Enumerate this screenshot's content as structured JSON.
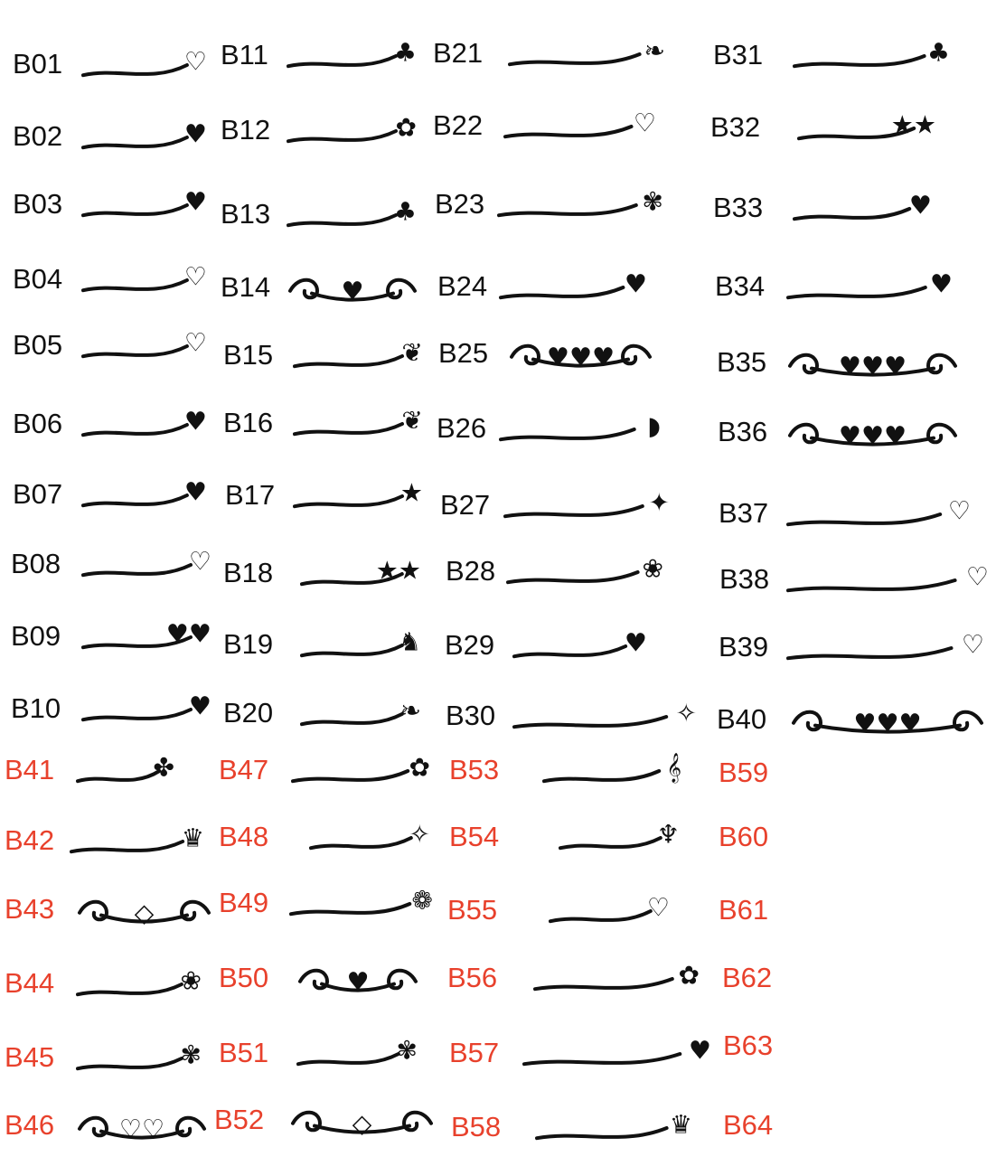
{
  "colors": {
    "standard": "#111111",
    "new": "#e8412c"
  },
  "items": [
    {
      "code": "B01",
      "group": "standard",
      "ornament": "double-heart-outline-icon"
    },
    {
      "code": "B02",
      "group": "standard",
      "ornament": "heart-icon"
    },
    {
      "code": "B03",
      "group": "standard",
      "ornament": "heart-icon"
    },
    {
      "code": "B04",
      "group": "standard",
      "ornament": "heart-outline-icon"
    },
    {
      "code": "B05",
      "group": "standard",
      "ornament": "heart-outline-icon"
    },
    {
      "code": "B06",
      "group": "standard",
      "ornament": "heart-icon"
    },
    {
      "code": "B07",
      "group": "standard",
      "ornament": "heart-icon"
    },
    {
      "code": "B08",
      "group": "standard",
      "ornament": "heart-outline-icon"
    },
    {
      "code": "B09",
      "group": "standard",
      "ornament": "double-heart-icon"
    },
    {
      "code": "B10",
      "group": "standard",
      "ornament": "heart-icon"
    },
    {
      "code": "B11",
      "group": "standard",
      "ornament": "clover-icon"
    },
    {
      "code": "B12",
      "group": "standard",
      "ornament": "clover-outline-icon"
    },
    {
      "code": "B13",
      "group": "standard",
      "ornament": "clover-icon"
    },
    {
      "code": "B14",
      "group": "standard",
      "ornament": "winged-heart-icon"
    },
    {
      "code": "B15",
      "group": "standard",
      "ornament": "wing-icon"
    },
    {
      "code": "B16",
      "group": "standard",
      "ornament": "wing-icon"
    },
    {
      "code": "B17",
      "group": "standard",
      "ornament": "star-icon"
    },
    {
      "code": "B18",
      "group": "standard",
      "ornament": "stars-icon"
    },
    {
      "code": "B19",
      "group": "standard",
      "ornament": "cat-icon"
    },
    {
      "code": "B20",
      "group": "standard",
      "ornament": "laurel-icon"
    },
    {
      "code": "B21",
      "group": "standard",
      "ornament": "laurel-icon"
    },
    {
      "code": "B22",
      "group": "standard",
      "ornament": "heart-ribbon-icon"
    },
    {
      "code": "B23",
      "group": "standard",
      "ornament": "butterfly-icon"
    },
    {
      "code": "B24",
      "group": "standard",
      "ornament": "heart-icon"
    },
    {
      "code": "B25",
      "group": "standard",
      "ornament": "hearts-icon"
    },
    {
      "code": "B26",
      "group": "standard",
      "ornament": "dolphin-icon"
    },
    {
      "code": "B27",
      "group": "standard",
      "ornament": "cupid-icon"
    },
    {
      "code": "B28",
      "group": "standard",
      "ornament": "rose-icon"
    },
    {
      "code": "B29",
      "group": "standard",
      "ornament": "heart-icon"
    },
    {
      "code": "B30",
      "group": "standard",
      "ornament": "fairy-icon"
    },
    {
      "code": "B31",
      "group": "standard",
      "ornament": "clover-icon"
    },
    {
      "code": "B32",
      "group": "standard",
      "ornament": "stars-icon"
    },
    {
      "code": "B33",
      "group": "standard",
      "ornament": "heart-icon"
    },
    {
      "code": "B34",
      "group": "standard",
      "ornament": "heart-icon"
    },
    {
      "code": "B35",
      "group": "standard",
      "ornament": "hearts-icon"
    },
    {
      "code": "B36",
      "group": "standard",
      "ornament": "hearts-icon"
    },
    {
      "code": "B37",
      "group": "standard",
      "ornament": "heart-outline-icon"
    },
    {
      "code": "B38",
      "group": "standard",
      "ornament": "double-heart-outline-icon"
    },
    {
      "code": "B39",
      "group": "standard",
      "ornament": "heart-outline-icon"
    },
    {
      "code": "B40",
      "group": "standard",
      "ornament": "hearts-icon"
    },
    {
      "code": "B41",
      "group": "new",
      "ornament": "hummingbird-icon"
    },
    {
      "code": "B42",
      "group": "new",
      "ornament": "crown-icon"
    },
    {
      "code": "B43",
      "group": "new",
      "ornament": "diamond-icon"
    },
    {
      "code": "B44",
      "group": "new",
      "ornament": "rose-icon"
    },
    {
      "code": "B45",
      "group": "new",
      "ornament": "butterfly-icon"
    },
    {
      "code": "B46",
      "group": "new",
      "ornament": "hearts-outline-icon"
    },
    {
      "code": "B47",
      "group": "new",
      "ornament": "flower-icon"
    },
    {
      "code": "B48",
      "group": "new",
      "ornament": "fairy-icon"
    },
    {
      "code": "B49",
      "group": "new",
      "ornament": "flower-outline-icon"
    },
    {
      "code": "B50",
      "group": "new",
      "ornament": "winged-heart-icon"
    },
    {
      "code": "B51",
      "group": "new",
      "ornament": "butterfly-icon"
    },
    {
      "code": "B52",
      "group": "new",
      "ornament": "diamond-icon"
    },
    {
      "code": "B53",
      "group": "new",
      "ornament": "treble-clef-icon"
    },
    {
      "code": "B54",
      "group": "new",
      "ornament": "mermaid-icon"
    },
    {
      "code": "B55",
      "group": "new",
      "ornament": "heart-outline-icon"
    },
    {
      "code": "B56",
      "group": "new",
      "ornament": "flower-icon"
    },
    {
      "code": "B57",
      "group": "new",
      "ornament": "heart-icon"
    },
    {
      "code": "B58",
      "group": "new",
      "ornament": "crown-icon"
    },
    {
      "code": "B59",
      "group": "new",
      "ornament": ""
    },
    {
      "code": "B60",
      "group": "new",
      "ornament": ""
    },
    {
      "code": "B61",
      "group": "new",
      "ornament": ""
    },
    {
      "code": "B62",
      "group": "new",
      "ornament": ""
    },
    {
      "code": "B63",
      "group": "new",
      "ornament": ""
    },
    {
      "code": "B64",
      "group": "new",
      "ornament": ""
    }
  ]
}
